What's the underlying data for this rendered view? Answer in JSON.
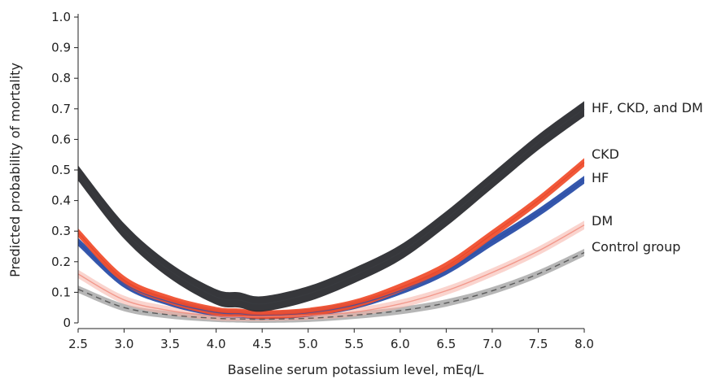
{
  "chart_data": {
    "type": "line",
    "xlabel": "Baseline serum potassium level, mEq/L",
    "ylabel": "Predicted probability of mortality",
    "xlim": [
      2.5,
      8.0
    ],
    "ylim": [
      0,
      1.0
    ],
    "x_ticks": [
      "2.5",
      "3.0",
      "3.5",
      "4.0",
      "4.5",
      "5.0",
      "5.5",
      "6.0",
      "6.5",
      "7.0",
      "7.5",
      "8.0"
    ],
    "y_ticks": [
      "0",
      "0.1",
      "0.2",
      "0.3",
      "0.4",
      "0.5",
      "0.6",
      "0.7",
      "0.8",
      "0.9",
      "1.0"
    ],
    "x": [
      2.5,
      3.0,
      3.5,
      4.0,
      4.25,
      4.5,
      5.0,
      5.5,
      6.0,
      6.5,
      7.0,
      7.5,
      8.0
    ],
    "grid": false,
    "series": [
      {
        "name": "HF, CKD, and DM",
        "color": "#3a3b40",
        "band_color": "#2b2c30",
        "dashed": false,
        "values": [
          0.49,
          0.3,
          0.17,
          0.085,
          0.075,
          0.062,
          0.095,
          0.155,
          0.23,
          0.34,
          0.465,
          0.59,
          0.7
        ],
        "band": 0.025
      },
      {
        "name": "CKD",
        "color": "#e8452b",
        "band_color": "#f0502f",
        "dashed": false,
        "values": [
          0.295,
          0.14,
          0.075,
          0.038,
          0.033,
          0.027,
          0.035,
          0.062,
          0.115,
          0.185,
          0.29,
          0.4,
          0.525
        ],
        "band": 0.014
      },
      {
        "name": "HF",
        "color": "#2e4fa7",
        "band_color": "#2a4ea8",
        "dashed": false,
        "values": [
          0.265,
          0.128,
          0.068,
          0.034,
          0.03,
          0.025,
          0.033,
          0.058,
          0.105,
          0.17,
          0.265,
          0.36,
          0.468
        ],
        "band": 0.013
      },
      {
        "name": "DM",
        "color": "#f08a7c",
        "band_color": "#f6b0a6",
        "dashed": false,
        "values": [
          0.16,
          0.075,
          0.04,
          0.022,
          0.02,
          0.02,
          0.024,
          0.035,
          0.062,
          0.105,
          0.165,
          0.235,
          0.32
        ],
        "band": 0.014
      },
      {
        "name": "Control group",
        "color": "#444444",
        "band_color": "#9d9d9d",
        "dashed": true,
        "values": [
          0.11,
          0.05,
          0.026,
          0.015,
          0.013,
          0.012,
          0.015,
          0.025,
          0.04,
          0.065,
          0.105,
          0.16,
          0.23
        ],
        "band": 0.012
      }
    ]
  }
}
